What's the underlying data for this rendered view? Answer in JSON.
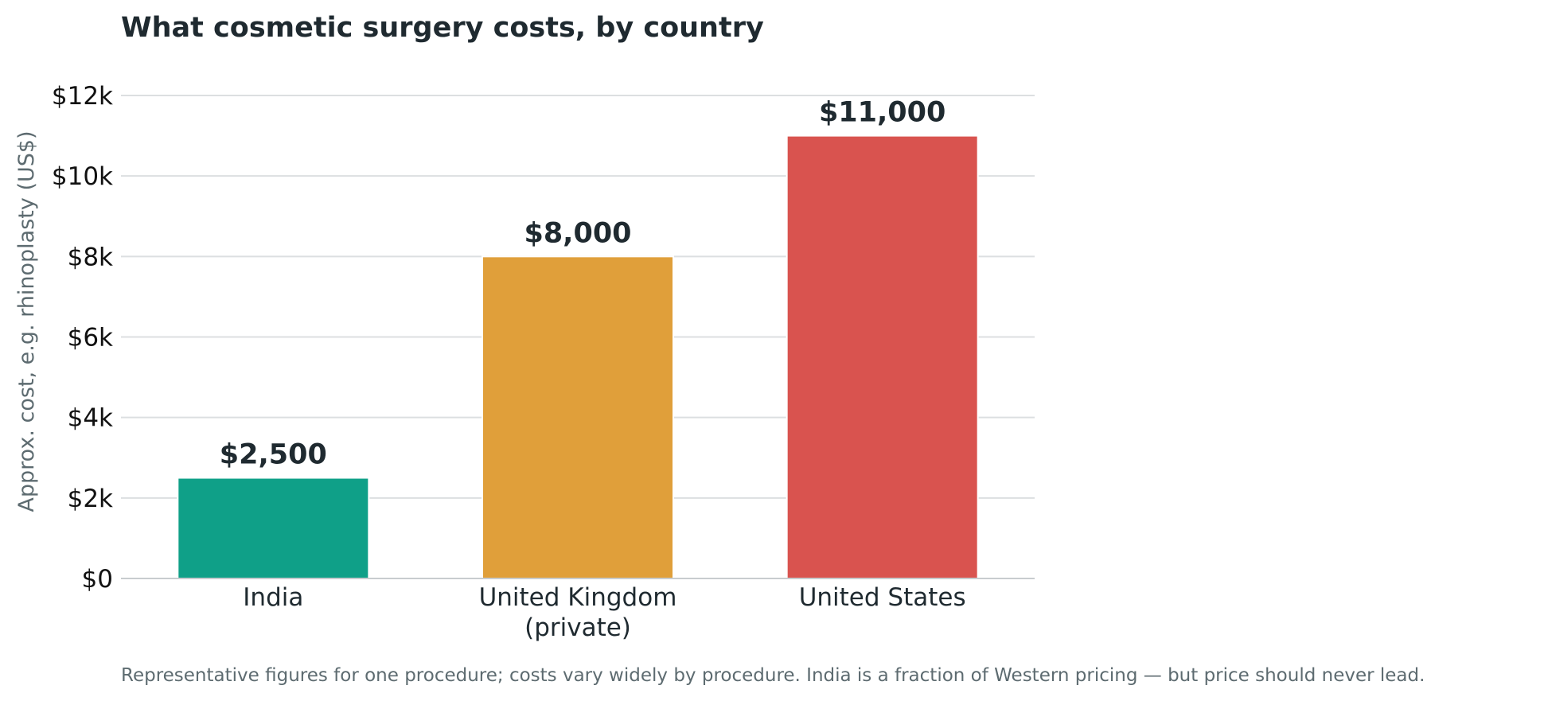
{
  "chart_data": {
    "type": "bar",
    "title": "What cosmetic surgery costs, by country",
    "ylabel": "Approx. cost, e.g. rhinoplasty (US$)",
    "xlabel": "",
    "categories": [
      [
        "India"
      ],
      [
        "United Kingdom",
        "(private)"
      ],
      [
        "United States"
      ]
    ],
    "values": [
      2500,
      8000,
      11000
    ],
    "value_labels": [
      "$2,500",
      "$8,000",
      "$11,000"
    ],
    "colors": [
      "#0fa088",
      "#e09f3a",
      "#d9534f"
    ],
    "ylim": [
      0,
      12000
    ],
    "yticks": [
      0,
      2000,
      4000,
      6000,
      8000,
      10000,
      12000
    ],
    "ytick_labels": [
      "$0",
      "$2k",
      "$4k",
      "$6k",
      "$8k",
      "$10k",
      "$12k"
    ],
    "grid": true,
    "footnote": "Representative figures for one procedure; costs vary widely by procedure. India is a fraction of Western pricing — but price should never lead."
  }
}
